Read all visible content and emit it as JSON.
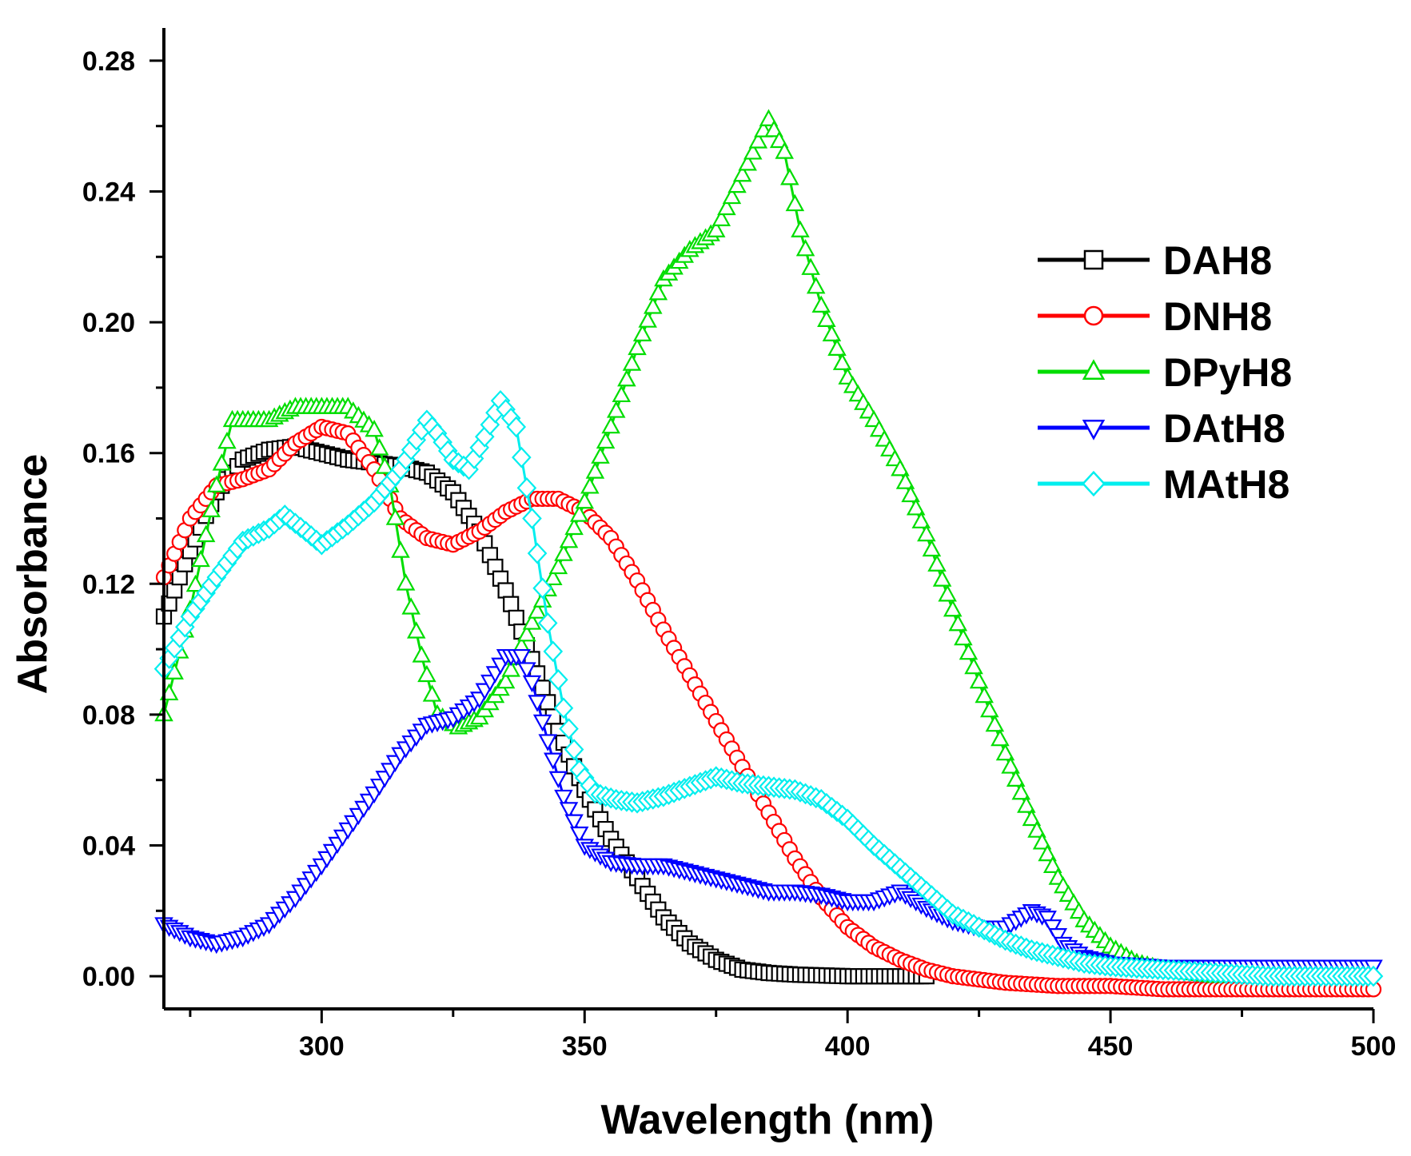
{
  "chart_data": {
    "type": "line",
    "title": "",
    "xlabel": "Wavelength (nm)",
    "ylabel": "Absorbance",
    "xlim": [
      270,
      500
    ],
    "ylim": [
      -0.01,
      0.29
    ],
    "xticks": [
      300,
      350,
      400,
      450,
      500
    ],
    "yticks": [
      0.0,
      0.04,
      0.08,
      0.12,
      0.16,
      0.2,
      0.24,
      0.28
    ],
    "xtick_labels": [
      "300",
      "350",
      "400",
      "450",
      "500"
    ],
    "ytick_labels": [
      "0.00",
      "0.04",
      "0.08",
      "0.12",
      "0.16",
      "0.20",
      "0.24",
      "0.28"
    ],
    "legend_position": "top-right",
    "series": [
      {
        "name": "DAH8",
        "color": "#000000",
        "marker": "square",
        "points": [
          [
            270,
            0.11
          ],
          [
            275,
            0.13
          ],
          [
            280,
            0.148
          ],
          [
            285,
            0.158
          ],
          [
            290,
            0.161
          ],
          [
            295,
            0.162
          ],
          [
            300,
            0.16
          ],
          [
            305,
            0.158
          ],
          [
            310,
            0.157
          ],
          [
            315,
            0.156
          ],
          [
            320,
            0.154
          ],
          [
            325,
            0.148
          ],
          [
            330,
            0.136
          ],
          [
            335,
            0.118
          ],
          [
            340,
            0.097
          ],
          [
            345,
            0.075
          ],
          [
            350,
            0.057
          ],
          [
            355,
            0.042
          ],
          [
            360,
            0.03
          ],
          [
            365,
            0.018
          ],
          [
            370,
            0.01
          ],
          [
            375,
            0.005
          ],
          [
            380,
            0.002
          ],
          [
            385,
            0.001
          ],
          [
            390,
            0.0005
          ],
          [
            400,
            0.0
          ],
          [
            410,
            0.0
          ],
          [
            415,
            0.0
          ]
        ]
      },
      {
        "name": "DNH8",
        "color": "#ff0000",
        "marker": "circle",
        "points": [
          [
            270,
            0.122
          ],
          [
            275,
            0.14
          ],
          [
            280,
            0.15
          ],
          [
            285,
            0.152
          ],
          [
            290,
            0.155
          ],
          [
            295,
            0.163
          ],
          [
            300,
            0.168
          ],
          [
            305,
            0.166
          ],
          [
            310,
            0.155
          ],
          [
            315,
            0.14
          ],
          [
            320,
            0.134
          ],
          [
            325,
            0.132
          ],
          [
            330,
            0.136
          ],
          [
            335,
            0.142
          ],
          [
            340,
            0.146
          ],
          [
            345,
            0.146
          ],
          [
            350,
            0.142
          ],
          [
            355,
            0.134
          ],
          [
            360,
            0.121
          ],
          [
            365,
            0.106
          ],
          [
            370,
            0.092
          ],
          [
            375,
            0.078
          ],
          [
            380,
            0.064
          ],
          [
            385,
            0.05
          ],
          [
            390,
            0.036
          ],
          [
            395,
            0.024
          ],
          [
            400,
            0.015
          ],
          [
            405,
            0.009
          ],
          [
            410,
            0.005
          ],
          [
            415,
            0.002
          ],
          [
            420,
            0.0
          ],
          [
            430,
            -0.002
          ],
          [
            440,
            -0.003
          ],
          [
            450,
            -0.003
          ],
          [
            460,
            -0.004
          ],
          [
            480,
            -0.004
          ],
          [
            500,
            -0.004
          ]
        ]
      },
      {
        "name": "DPyH8",
        "color": "#00dd00",
        "marker": "triangle-up",
        "points": [
          [
            270,
            0.08
          ],
          [
            275,
            0.112
          ],
          [
            280,
            0.15
          ],
          [
            283,
            0.17
          ],
          [
            290,
            0.17
          ],
          [
            295,
            0.174
          ],
          [
            300,
            0.174
          ],
          [
            305,
            0.174
          ],
          [
            310,
            0.167
          ],
          [
            313,
            0.15
          ],
          [
            316,
            0.12
          ],
          [
            319,
            0.098
          ],
          [
            322,
            0.08
          ],
          [
            326,
            0.076
          ],
          [
            330,
            0.079
          ],
          [
            335,
            0.09
          ],
          [
            340,
            0.108
          ],
          [
            345,
            0.125
          ],
          [
            350,
            0.145
          ],
          [
            355,
            0.168
          ],
          [
            360,
            0.192
          ],
          [
            365,
            0.213
          ],
          [
            370,
            0.222
          ],
          [
            375,
            0.228
          ],
          [
            380,
            0.245
          ],
          [
            385,
            0.262
          ],
          [
            388,
            0.252
          ],
          [
            391,
            0.228
          ],
          [
            395,
            0.205
          ],
          [
            400,
            0.183
          ],
          [
            405,
            0.17
          ],
          [
            410,
            0.155
          ],
          [
            415,
            0.135
          ],
          [
            420,
            0.112
          ],
          [
            425,
            0.09
          ],
          [
            430,
            0.068
          ],
          [
            435,
            0.048
          ],
          [
            440,
            0.03
          ],
          [
            445,
            0.017
          ],
          [
            450,
            0.009
          ],
          [
            455,
            0.004
          ],
          [
            460,
            0.002
          ],
          [
            465,
            0.001
          ],
          [
            470,
            0.0
          ]
        ]
      },
      {
        "name": "DAtH8",
        "color": "#0000ff",
        "marker": "triangle-down",
        "points": [
          [
            270,
            0.016
          ],
          [
            275,
            0.012
          ],
          [
            280,
            0.01
          ],
          [
            285,
            0.012
          ],
          [
            290,
            0.016
          ],
          [
            295,
            0.024
          ],
          [
            300,
            0.034
          ],
          [
            305,
            0.045
          ],
          [
            310,
            0.056
          ],
          [
            315,
            0.068
          ],
          [
            320,
            0.077
          ],
          [
            325,
            0.079
          ],
          [
            330,
            0.085
          ],
          [
            335,
            0.098
          ],
          [
            338,
            0.098
          ],
          [
            340,
            0.09
          ],
          [
            343,
            0.072
          ],
          [
            346,
            0.055
          ],
          [
            350,
            0.04
          ],
          [
            355,
            0.035
          ],
          [
            360,
            0.034
          ],
          [
            365,
            0.034
          ],
          [
            370,
            0.032
          ],
          [
            375,
            0.03
          ],
          [
            380,
            0.028
          ],
          [
            385,
            0.026
          ],
          [
            390,
            0.026
          ],
          [
            395,
            0.025
          ],
          [
            400,
            0.023
          ],
          [
            405,
            0.023
          ],
          [
            410,
            0.026
          ],
          [
            415,
            0.021
          ],
          [
            420,
            0.017
          ],
          [
            425,
            0.015
          ],
          [
            430,
            0.015
          ],
          [
            435,
            0.02
          ],
          [
            438,
            0.018
          ],
          [
            441,
            0.01
          ],
          [
            445,
            0.006
          ],
          [
            450,
            0.004
          ],
          [
            460,
            0.003
          ],
          [
            470,
            0.003
          ],
          [
            480,
            0.003
          ],
          [
            490,
            0.003
          ],
          [
            500,
            0.003
          ]
        ]
      },
      {
        "name": "MAtH8",
        "color": "#00eeee",
        "marker": "diamond",
        "points": [
          [
            270,
            0.094
          ],
          [
            275,
            0.11
          ],
          [
            280,
            0.122
          ],
          [
            285,
            0.133
          ],
          [
            290,
            0.137
          ],
          [
            293,
            0.141
          ],
          [
            297,
            0.136
          ],
          [
            300,
            0.132
          ],
          [
            305,
            0.138
          ],
          [
            310,
            0.145
          ],
          [
            315,
            0.155
          ],
          [
            320,
            0.17
          ],
          [
            322,
            0.166
          ],
          [
            325,
            0.158
          ],
          [
            328,
            0.155
          ],
          [
            331,
            0.165
          ],
          [
            334,
            0.176
          ],
          [
            337,
            0.168
          ],
          [
            340,
            0.14
          ],
          [
            343,
            0.108
          ],
          [
            346,
            0.082
          ],
          [
            349,
            0.063
          ],
          [
            352,
            0.056
          ],
          [
            356,
            0.054
          ],
          [
            360,
            0.053
          ],
          [
            365,
            0.055
          ],
          [
            370,
            0.058
          ],
          [
            375,
            0.061
          ],
          [
            380,
            0.059
          ],
          [
            385,
            0.058
          ],
          [
            390,
            0.057
          ],
          [
            395,
            0.054
          ],
          [
            400,
            0.048
          ],
          [
            405,
            0.04
          ],
          [
            410,
            0.033
          ],
          [
            415,
            0.026
          ],
          [
            420,
            0.019
          ],
          [
            425,
            0.015
          ],
          [
            430,
            0.011
          ],
          [
            435,
            0.008
          ],
          [
            440,
            0.006
          ],
          [
            445,
            0.004
          ],
          [
            450,
            0.003
          ],
          [
            460,
            0.002
          ],
          [
            470,
            0.001
          ],
          [
            480,
            0.0
          ],
          [
            490,
            0.0
          ],
          [
            500,
            0.0
          ]
        ]
      }
    ]
  }
}
